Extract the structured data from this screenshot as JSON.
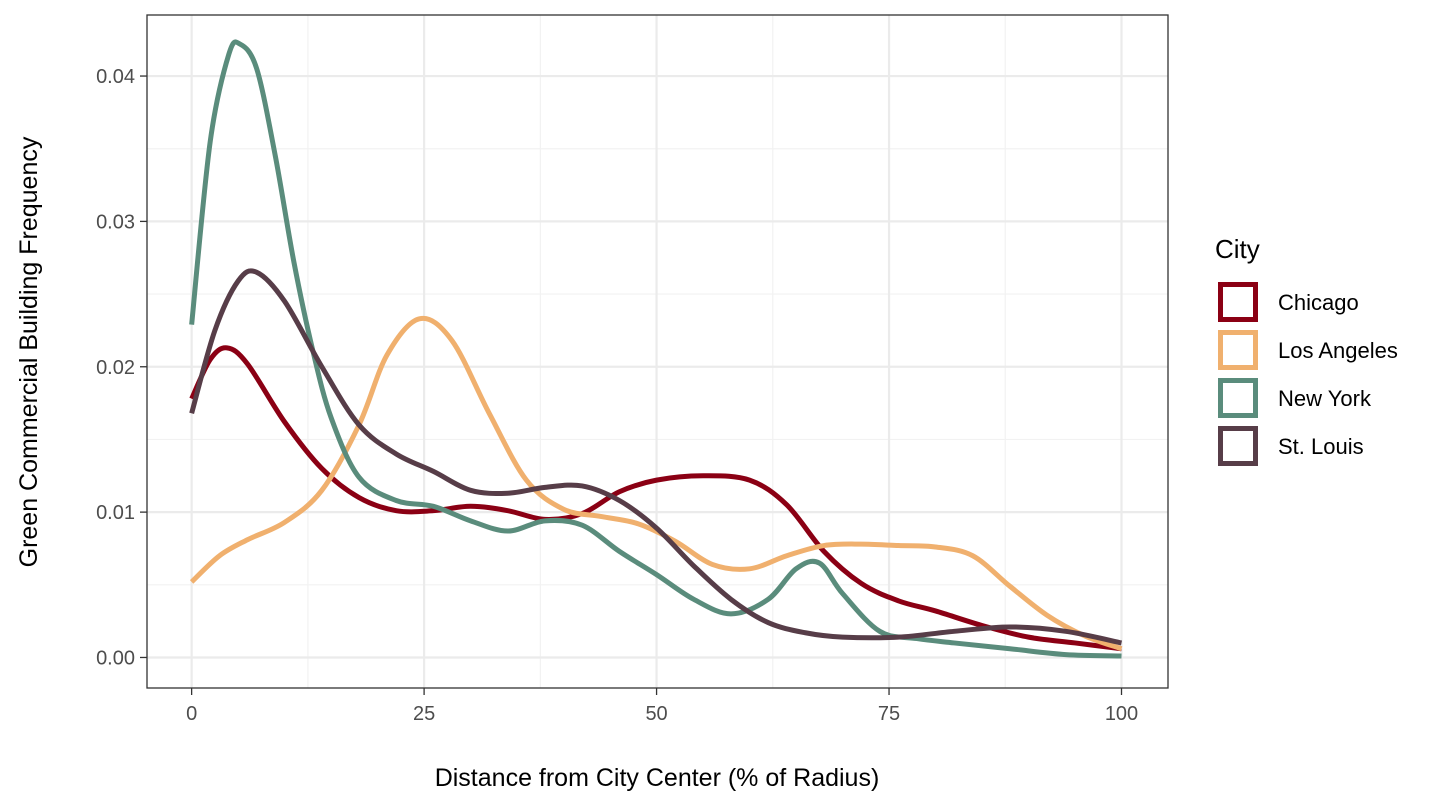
{
  "chart_data": {
    "type": "line",
    "xlabel": "Distance from City Center (% of Radius)",
    "ylabel": "Green Commercial Building Frequency",
    "xlim": [
      -4.8,
      105
    ],
    "ylim": [
      -0.0021,
      0.0442
    ],
    "x_ticks": [
      0,
      25,
      50,
      75,
      100
    ],
    "x_tick_labels": [
      "0",
      "25",
      "50",
      "75",
      "100"
    ],
    "y_ticks": [
      0.0,
      0.01,
      0.02,
      0.03,
      0.04
    ],
    "y_tick_labels": [
      "0.00",
      "0.01",
      "0.02",
      "0.03",
      "0.04"
    ],
    "grid": true,
    "legend": {
      "title": "City",
      "position": "right"
    },
    "series": [
      {
        "name": "Chicago",
        "color": "#8B0014",
        "points": [
          [
            0,
            0.0178
          ],
          [
            2,
            0.0205
          ],
          [
            3.8,
            0.0213
          ],
          [
            6,
            0.0202
          ],
          [
            10,
            0.0162
          ],
          [
            14,
            0.013
          ],
          [
            18,
            0.011
          ],
          [
            22,
            0.0101
          ],
          [
            26,
            0.0101
          ],
          [
            30,
            0.0104
          ],
          [
            34,
            0.0101
          ],
          [
            38,
            0.0095
          ],
          [
            42,
            0.0099
          ],
          [
            46,
            0.0114
          ],
          [
            50,
            0.0122
          ],
          [
            55,
            0.0125
          ],
          [
            60,
            0.0122
          ],
          [
            64,
            0.0105
          ],
          [
            68,
            0.0073
          ],
          [
            72,
            0.0051
          ],
          [
            76,
            0.0039
          ],
          [
            80,
            0.0032
          ],
          [
            85,
            0.0022
          ],
          [
            90,
            0.0014
          ],
          [
            95,
            0.001
          ],
          [
            100,
            0.0006
          ]
        ]
      },
      {
        "name": "Los Angeles",
        "color": "#F0B06E",
        "points": [
          [
            0,
            0.0052
          ],
          [
            3,
            0.007
          ],
          [
            6,
            0.0081
          ],
          [
            10,
            0.0093
          ],
          [
            14,
            0.0115
          ],
          [
            18,
            0.016
          ],
          [
            21,
            0.0208
          ],
          [
            24.5,
            0.0233
          ],
          [
            28,
            0.0218
          ],
          [
            32,
            0.0168
          ],
          [
            36,
            0.0122
          ],
          [
            40,
            0.0102
          ],
          [
            44,
            0.0097
          ],
          [
            48,
            0.0092
          ],
          [
            52,
            0.008
          ],
          [
            56,
            0.0064
          ],
          [
            60,
            0.0061
          ],
          [
            64,
            0.007
          ],
          [
            68,
            0.0077
          ],
          [
            72,
            0.0078
          ],
          [
            76,
            0.0077
          ],
          [
            80,
            0.0076
          ],
          [
            84,
            0.007
          ],
          [
            88,
            0.0049
          ],
          [
            92,
            0.0029
          ],
          [
            96,
            0.0015
          ],
          [
            100,
            0.0006
          ]
        ]
      },
      {
        "name": "New York",
        "color": "#5A8C7C",
        "points": [
          [
            0,
            0.0229
          ],
          [
            2,
            0.0355
          ],
          [
            4,
            0.0415
          ],
          [
            5.2,
            0.0422
          ],
          [
            7,
            0.0405
          ],
          [
            9,
            0.0345
          ],
          [
            11,
            0.0272
          ],
          [
            13,
            0.0212
          ],
          [
            15,
            0.0165
          ],
          [
            18,
            0.0124
          ],
          [
            22,
            0.0108
          ],
          [
            26,
            0.0104
          ],
          [
            30,
            0.0094
          ],
          [
            34,
            0.0087
          ],
          [
            38,
            0.0094
          ],
          [
            42,
            0.0091
          ],
          [
            46,
            0.0073
          ],
          [
            50,
            0.0057
          ],
          [
            54,
            0.004
          ],
          [
            58,
            0.003
          ],
          [
            62,
            0.004
          ],
          [
            65,
            0.0061
          ],
          [
            67.5,
            0.0065
          ],
          [
            70,
            0.0044
          ],
          [
            74,
            0.0018
          ],
          [
            78,
            0.0013
          ],
          [
            82,
            0.001
          ],
          [
            88,
            0.0006
          ],
          [
            94,
            0.0002
          ],
          [
            100,
            0.0001
          ]
        ]
      },
      {
        "name": "St. Louis",
        "color": "#573D48",
        "points": [
          [
            0,
            0.0168
          ],
          [
            2.5,
            0.0225
          ],
          [
            5,
            0.0259
          ],
          [
            7,
            0.0265
          ],
          [
            10,
            0.0245
          ],
          [
            14,
            0.02
          ],
          [
            18,
            0.016
          ],
          [
            22,
            0.014
          ],
          [
            26,
            0.0128
          ],
          [
            30,
            0.0115
          ],
          [
            34,
            0.0113
          ],
          [
            38,
            0.0117
          ],
          [
            42,
            0.0118
          ],
          [
            46,
            0.0108
          ],
          [
            50,
            0.0089
          ],
          [
            54,
            0.0063
          ],
          [
            58,
            0.004
          ],
          [
            62,
            0.0024
          ],
          [
            66,
            0.0017
          ],
          [
            70,
            0.0014
          ],
          [
            76,
            0.0014
          ],
          [
            82,
            0.0018
          ],
          [
            88,
            0.0021
          ],
          [
            94,
            0.0018
          ],
          [
            100,
            0.001
          ]
        ]
      }
    ]
  }
}
